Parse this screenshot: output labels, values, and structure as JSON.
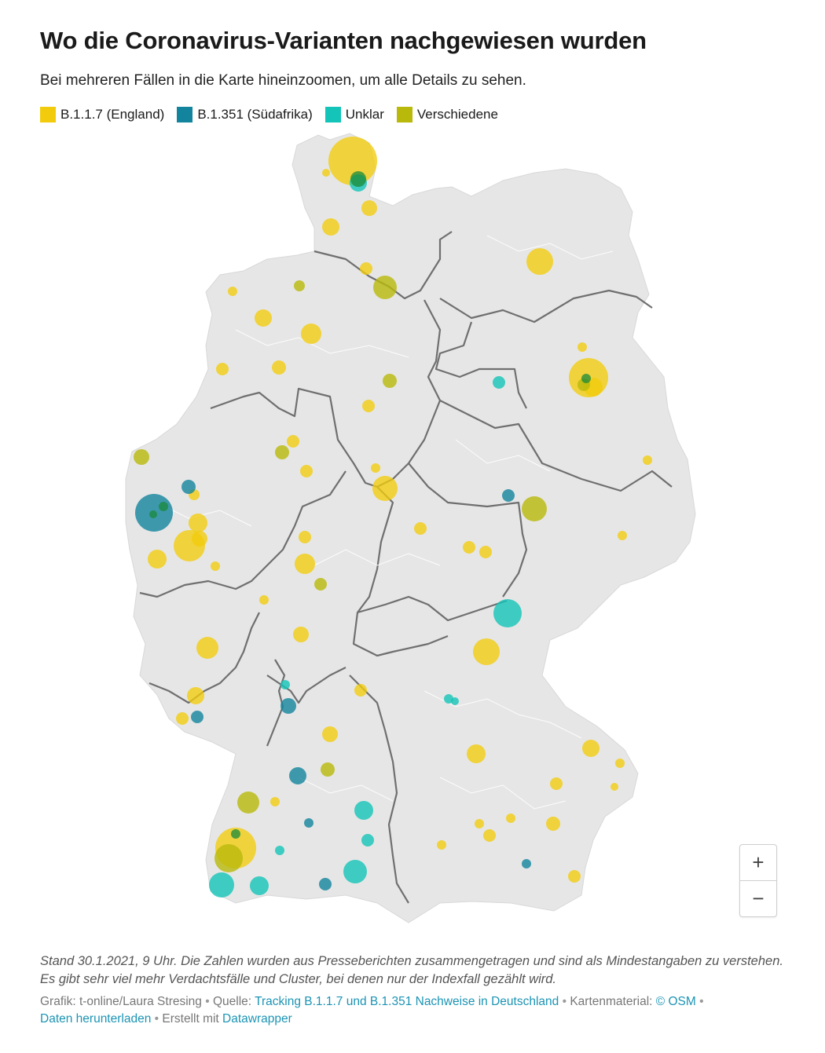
{
  "title": "Wo die Coronavirus-Varianten nachgewiesen wurden",
  "subtitle": "Bei mehreren Fällen in die Karte hineinzoomen, um alle Details zu sehen.",
  "legend": [
    {
      "label": "B.1.1.7 (England)",
      "color": "#f2cc0c"
    },
    {
      "label": "B.1.351 (Südafrika)",
      "color": "#13849e"
    },
    {
      "label": "Unklar",
      "color": "#14c4b8"
    },
    {
      "label": "Verschiedene",
      "color": "#b9b90b"
    }
  ],
  "map": {
    "land_color": "#e6e6e6",
    "border_color": "#6f6f6f"
  },
  "zoom": {
    "in_label": "+",
    "out_label": "−"
  },
  "notes": "Stand 30.1.2021, 9 Uhr. Die Zahlen wurden aus Presseberichten zusammengetragen und sind als Mindestangaben zu verstehen. Es gibt sehr viel mehr Verdachtsfälle und Cluster, bei denen nur der Indexfall gezählt wird.",
  "footer": {
    "grafik_label": "Grafik: t-online/Laura Stresing",
    "quelle_label": "Quelle:",
    "quelle_link": "Tracking B.1.1.7 und B.1.351 Nachweise in Deutschland",
    "karten_label": "Kartenmaterial:",
    "karten_link": "© OSM",
    "download_link": "Daten herunterladen",
    "erstellt_label": "Erstellt mit",
    "erstellt_link": "Datawrapper"
  }
}
